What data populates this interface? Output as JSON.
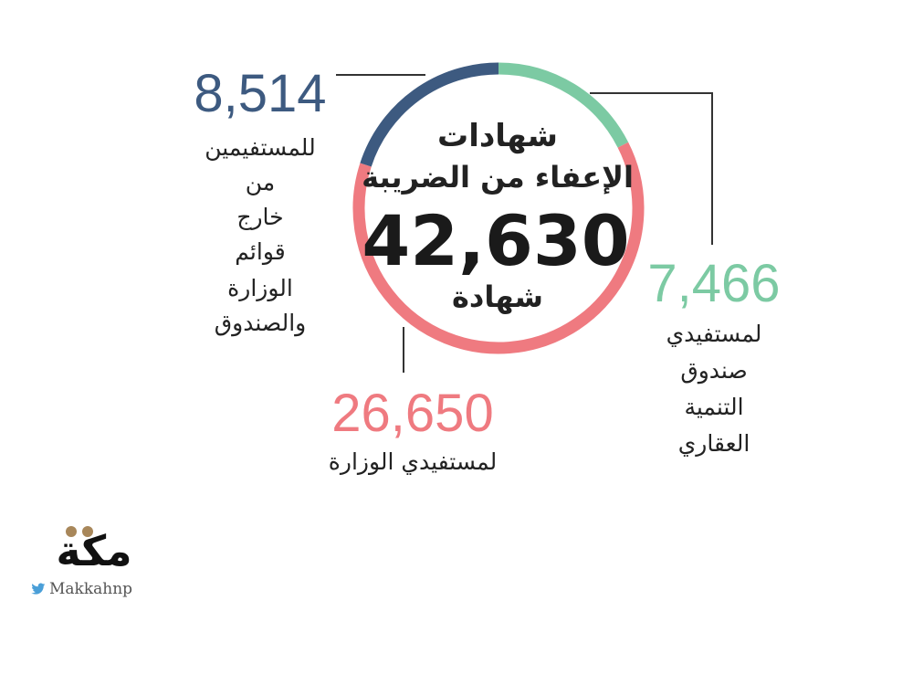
{
  "colors": {
    "blue": "#3d5a80",
    "green": "#7ccaa3",
    "pink": "#ef7a80",
    "text": "#1a1a1a",
    "line": "#333333",
    "logo_accent": "#a8875a"
  },
  "chart_data": {
    "type": "pie",
    "title_lines": [
      "شهادات",
      "الإعفاء من الضريبة"
    ],
    "total_label": "42,630",
    "total": 42630,
    "total_unit": "شهادة",
    "slices": [
      {
        "value": 8514,
        "value_label": "8,514",
        "label_lines": [
          "للمستفيمين",
          "من",
          "خارج",
          "قوائم",
          "الوزارة",
          "والصندوق"
        ],
        "color": "#3d5a80"
      },
      {
        "value": 7466,
        "value_label": "7,466",
        "label_lines": [
          "لمستفيدي",
          "صندوق",
          "التنمية",
          "العقاري"
        ],
        "color": "#7ccaa3"
      },
      {
        "value": 26650,
        "value_label": "26,650",
        "label_lines": [
          "لمستفيدي الوزارة"
        ],
        "color": "#ef7a80"
      }
    ]
  },
  "logo": {
    "name": "مكة",
    "handle": "Makkahnp",
    "icon": "twitter-bird-icon"
  }
}
